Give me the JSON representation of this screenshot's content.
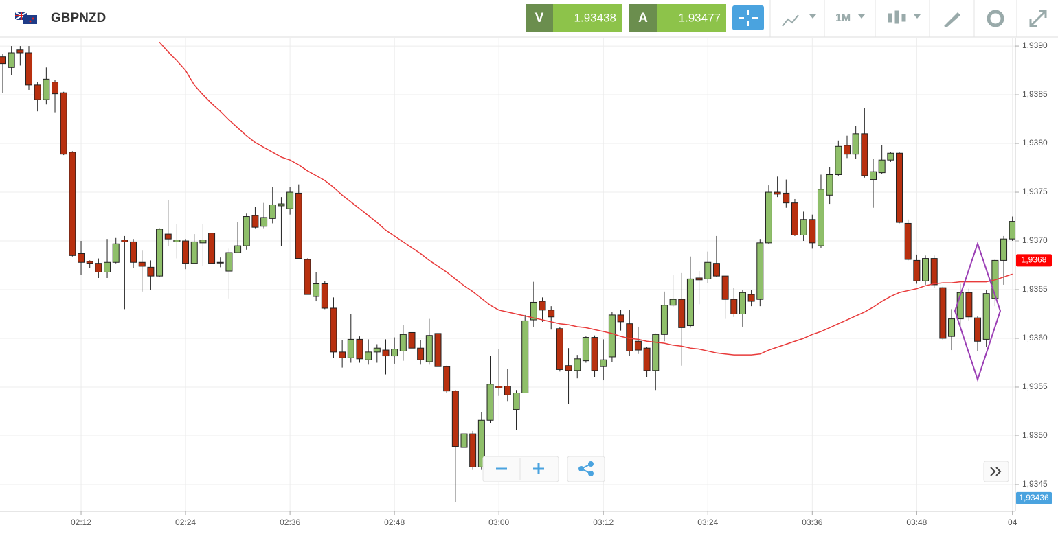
{
  "header": {
    "symbol": "GBPNZD",
    "sell_label": "V",
    "sell_price": "1.93438",
    "buy_label": "A",
    "buy_price": "1.93477",
    "timeframe": "1M"
  },
  "chart_data": {
    "type": "candlestick",
    "categories": [
      null,
      null,
      null,
      null,
      null,
      null,
      null,
      null,
      null,
      "02:12",
      null,
      null,
      null,
      null,
      null,
      null,
      null,
      null,
      null,
      null,
      null,
      "02:24",
      null,
      null,
      null,
      null,
      null,
      null,
      null,
      null,
      null,
      null,
      null,
      "02:36",
      null,
      null,
      null,
      null,
      null,
      null,
      null,
      null,
      null,
      null,
      null,
      "02:48",
      null,
      null,
      null,
      null,
      null,
      null,
      null,
      null,
      null,
      null,
      null,
      "03:00",
      null,
      null,
      null,
      null,
      null,
      null,
      null,
      null,
      null,
      null,
      null,
      "03:12",
      null,
      null,
      null,
      null,
      null,
      null,
      null,
      null,
      null,
      null,
      null,
      "03:24",
      null,
      null,
      null,
      null,
      null,
      null,
      null,
      null,
      null,
      null,
      null,
      "03:36",
      null,
      null,
      null,
      null,
      null,
      null,
      null,
      null,
      null,
      null,
      null,
      "03:48",
      null,
      null,
      null,
      null,
      null,
      null,
      null,
      null,
      null,
      null,
      "04"
    ],
    "open": [
      1.93889,
      1.93878,
      1.93896,
      1.93893,
      1.9386,
      1.93845,
      1.93863,
      1.93852,
      1.93791,
      1.93687,
      1.93679,
      1.93677,
      1.93668,
      1.93678,
      1.93701,
      1.93699,
      1.93678,
      1.93673,
      1.93664,
      1.93707,
      1.93699,
      1.937,
      1.93677,
      1.93698,
      1.93708,
      1.93678,
      1.93669,
      1.93688,
      1.93695,
      1.93726,
      1.93715,
      1.93723,
      1.93736,
      1.93733,
      1.93749,
      1.93681,
      1.93643,
      1.93656,
      1.93631,
      1.93586,
      1.9358,
      1.93599,
      1.93578,
      1.93586,
      1.93588,
      1.93582,
      1.93587,
      1.93606,
      1.9359,
      1.93576,
      1.93605,
      1.93571,
      1.93546,
      1.93488,
      1.93502,
      1.93468,
      1.93516,
      1.93551,
      1.93551,
      1.93527,
      1.93544,
      1.93619,
      1.93638,
      1.93629,
      1.9361,
      1.93572,
      1.93567,
      1.93577,
      1.93601,
      1.93571,
      1.93581,
      1.93624,
      1.93615,
      1.93597,
      1.9359,
      1.93567,
      1.93604,
      1.93634,
      1.9364,
      1.93613,
      1.93662,
      1.93661,
      1.93677,
      1.93664,
      1.9364,
      1.93625,
      1.93645,
      1.9364,
      1.93698,
      1.9375,
      1.93749,
      1.93739,
      1.93706,
      1.93722,
      1.93695,
      1.93747,
      1.93768,
      1.93798,
      1.93789,
      1.9381,
      1.93763,
      1.9377,
      1.93783,
      1.9379,
      1.93718,
      1.9368,
      1.93659,
      1.93682,
      1.93652,
      1.93602,
      1.9362,
      1.93647,
      1.93621,
      1.93599,
      1.93641,
      1.9368,
      1.93702
    ],
    "high": [
      1.93892,
      1.939,
      1.939,
      1.939,
      1.93863,
      1.93878,
      1.93865,
      1.93853,
      1.93792,
      1.937,
      1.9368,
      1.93682,
      1.93702,
      1.93703,
      1.93705,
      1.93702,
      1.9369,
      1.9368,
      1.93713,
      1.93742,
      1.93717,
      1.93702,
      1.93707,
      1.93717,
      1.93708,
      1.93683,
      1.93692,
      1.93719,
      1.93728,
      1.93735,
      1.93739,
      1.93755,
      1.93745,
      1.93755,
      1.93758,
      1.93682,
      1.93668,
      1.93659,
      1.93642,
      1.93598,
      1.93625,
      1.93602,
      1.93599,
      1.93594,
      1.93599,
      1.93601,
      1.93614,
      1.93632,
      1.93598,
      1.9362,
      1.9361,
      1.93572,
      1.93547,
      1.93508,
      1.93505,
      1.93524,
      1.93582,
      1.93589,
      1.93569,
      1.93547,
      1.93624,
      1.93658,
      1.93642,
      1.93633,
      1.93612,
      1.9359,
      1.93583,
      1.93602,
      1.93603,
      1.93599,
      1.93627,
      1.93629,
      1.93629,
      1.93612,
      1.93591,
      1.93605,
      1.93648,
      1.93665,
      1.93667,
      1.93684,
      1.93669,
      1.93689,
      1.93705,
      1.93664,
      1.93652,
      1.9365,
      1.9365,
      1.93702,
      1.93757,
      1.93766,
      1.93763,
      1.93743,
      1.9373,
      1.93727,
      1.93768,
      1.93776,
      1.93803,
      1.93808,
      1.93818,
      1.93836,
      1.93784,
      1.93798,
      1.93791,
      1.93791,
      1.93722,
      1.93686,
      1.93685,
      1.93685,
      1.93653,
      1.9363,
      1.93656,
      1.93651,
      1.93623,
      1.9365,
      1.93681,
      1.93705,
      1.93725
    ],
    "low": [
      1.93852,
      1.9387,
      1.9388,
      1.93855,
      1.93833,
      1.9384,
      1.93832,
      1.93788,
      1.93684,
      1.93665,
      1.93672,
      1.93662,
      1.93662,
      1.93677,
      1.9363,
      1.93672,
      1.93648,
      1.9365,
      1.93663,
      1.93695,
      1.93682,
      1.93671,
      1.93677,
      1.93674,
      1.93677,
      1.93673,
      1.93641,
      1.93688,
      1.93691,
      1.93713,
      1.93713,
      1.93718,
      1.93695,
      1.93727,
      1.93681,
      1.93645,
      1.93638,
      1.9363,
      1.9358,
      1.9357,
      1.93575,
      1.93575,
      1.93573,
      1.93575,
      1.93563,
      1.93574,
      1.93577,
      1.9358,
      1.93573,
      1.93573,
      1.93568,
      1.93544,
      1.93432,
      1.93483,
      1.93465,
      1.93465,
      1.93513,
      1.93541,
      1.93535,
      1.93506,
      1.93544,
      1.93612,
      1.93617,
      1.93609,
      1.93566,
      1.93533,
      1.93559,
      1.93575,
      1.9356,
      1.93557,
      1.93576,
      1.93608,
      1.93582,
      1.93584,
      1.9356,
      1.93547,
      1.93597,
      1.93632,
      1.93572,
      1.93611,
      1.93635,
      1.93657,
      1.93663,
      1.9362,
      1.93622,
      1.93612,
      1.93633,
      1.93633,
      1.93697,
      1.93745,
      1.93734,
      1.93705,
      1.937,
      1.93692,
      1.93693,
      1.93738,
      1.93767,
      1.93785,
      1.93784,
      1.93765,
      1.93734,
      1.93769,
      1.93781,
      1.93718,
      1.9368,
      1.93656,
      1.93655,
      1.93652,
      1.93598,
      1.93588,
      1.93611,
      1.93618,
      1.93587,
      1.93591,
      1.93633,
      1.93655,
      1.937
    ],
    "close": [
      1.93882,
      1.93893,
      1.93893,
      1.9386,
      1.93845,
      1.93866,
      1.93851,
      1.93789,
      1.93685,
      1.93678,
      1.93677,
      1.93668,
      1.93678,
      1.93697,
      1.93699,
      1.93678,
      1.93674,
      1.93664,
      1.93712,
      1.93702,
      1.93701,
      1.93677,
      1.93699,
      1.93701,
      1.93677,
      1.93678,
      1.93688,
      1.93695,
      1.93725,
      1.93714,
      1.93724,
      1.93737,
      1.93738,
      1.9375,
      1.93682,
      1.93645,
      1.93656,
      1.93631,
      1.93586,
      1.9358,
      1.93599,
      1.93579,
      1.93586,
      1.9359,
      1.93582,
      1.93589,
      1.93604,
      1.9359,
      1.93578,
      1.93603,
      1.93571,
      1.93546,
      1.93489,
      1.93502,
      1.93468,
      1.93516,
      1.93553,
      1.93549,
      1.93542,
      1.93544,
      1.93618,
      1.93637,
      1.93629,
      1.93622,
      1.93568,
      1.93567,
      1.93579,
      1.93601,
      1.93567,
      1.93578,
      1.93624,
      1.93617,
      1.93587,
      1.93588,
      1.93567,
      1.93604,
      1.93634,
      1.9364,
      1.93611,
      1.93661,
      1.9366,
      1.93678,
      1.93664,
      1.9364,
      1.93625,
      1.93647,
      1.93638,
      1.93698,
      1.9375,
      1.93748,
      1.93739,
      1.93706,
      1.93722,
      1.93698,
      1.93753,
      1.93768,
      1.93797,
      1.93789,
      1.9381,
      1.93767,
      1.93771,
      1.93783,
      1.9379,
      1.93719,
      1.93681,
      1.93659,
      1.93682,
      1.93655,
      1.936,
      1.9362,
      1.93647,
      1.93622,
      1.93597,
      1.93646,
      1.9368,
      1.93702,
      1.9372
    ],
    "up_color": "#8fbf6a",
    "down_color": "#b8300f",
    "moving_average": {
      "color": "#e83a3a",
      "values": [
        null,
        null,
        null,
        null,
        null,
        null,
        null,
        null,
        null,
        null,
        null,
        null,
        null,
        null,
        null,
        null,
        null,
        null,
        1.93904,
        1.93894,
        1.93885,
        1.93875,
        1.9386,
        1.9385,
        1.93841,
        1.93833,
        1.93824,
        1.93816,
        1.93808,
        1.93801,
        1.93796,
        1.93791,
        1.93786,
        1.93783,
        1.93778,
        1.93772,
        1.93767,
        1.93762,
        1.93755,
        1.93747,
        1.9374,
        1.93733,
        1.93726,
        1.93719,
        1.93711,
        1.93705,
        1.93699,
        1.93693,
        1.93687,
        1.9368,
        1.93674,
        1.93668,
        1.93661,
        1.93654,
        1.93648,
        1.93641,
        1.93634,
        1.93629,
        1.93627,
        1.93625,
        1.93623,
        1.93621,
        1.93619,
        1.93617,
        1.93615,
        1.93614,
        1.93612,
        1.93611,
        1.93609,
        1.93607,
        1.93605,
        1.93602,
        1.936,
        1.93599,
        1.93597,
        1.93596,
        1.93595,
        1.93593,
        1.93592,
        1.9359,
        1.93589,
        1.93587,
        1.93585,
        1.93584,
        1.93583,
        1.93583,
        1.93583,
        1.93584,
        1.93588,
        1.93591,
        1.93594,
        1.93597,
        1.936,
        1.93604,
        1.93607,
        1.93611,
        1.93615,
        1.93619,
        1.93623,
        1.93627,
        1.93632,
        1.93638,
        1.93643,
        1.93647,
        1.93649,
        1.93651,
        1.93654,
        1.93656,
        1.93657,
        1.93657,
        1.93658,
        1.93658,
        1.93658,
        1.93658,
        1.9366,
        1.93663,
        1.93666
      ]
    },
    "ylim": [
      1.934225,
      1.939085
    ],
    "yticks": [
      {
        "value": 1.9345,
        "label": "1,9345"
      },
      {
        "value": 1.935,
        "label": "1,9350"
      },
      {
        "value": 1.9355,
        "label": "1,9355"
      },
      {
        "value": 1.936,
        "label": "1,9360"
      },
      {
        "value": 1.9365,
        "label": "1,9365"
      },
      {
        "value": 1.937,
        "label": "1,9370"
      },
      {
        "value": 1.9375,
        "label": "1,9375"
      },
      {
        "value": 1.938,
        "label": "1,9380"
      },
      {
        "value": 1.9385,
        "label": "1,9385"
      },
      {
        "value": 1.939,
        "label": "1,9390"
      }
    ],
    "price_tags": [
      {
        "value": 1.9368,
        "label": "1,9368",
        "color": "#ff0000"
      },
      {
        "value": 1.93436,
        "label": "1,93436",
        "color": "#4aa3df"
      }
    ],
    "grid": true
  }
}
